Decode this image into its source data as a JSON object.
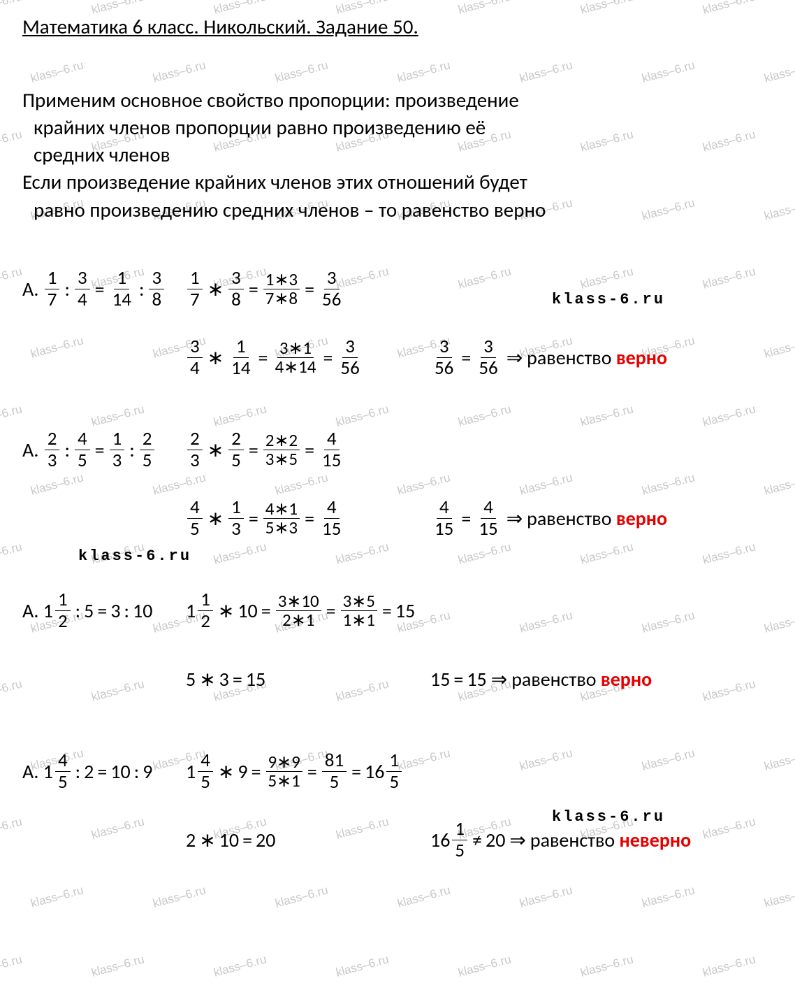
{
  "title": "Математика 6 класс. Никольский. Задание 50.",
  "intro": {
    "l1": "Применим основное свойство пропорции: произведение",
    "l2": "крайних  членов пропорции равно произведению её",
    "l3": "средних членов",
    "l4": "Если произведение крайних членов этих отношений будет",
    "l5": "равно произведению средних членов – то равенство верно"
  },
  "watermark": "klass–6.ru",
  "klass6": "klass-6.ru",
  "labels": {
    "A": "А.",
    "ravenstvo": "равенство",
    "verno": "верно",
    "neverno": "неверно",
    "arrow": "⇒"
  },
  "p1": {
    "lhs_a_n": "1",
    "lhs_a_d": "7",
    "lhs_b_n": "3",
    "lhs_b_d": "4",
    "lhs_c_n": "1",
    "lhs_c_d": "14",
    "lhs_d_n": "3",
    "lhs_d_d": "8",
    "r1_a_n": "1",
    "r1_a_d": "7",
    "r1_b_n": "3",
    "r1_b_d": "8",
    "r1_c_n": "1∗3",
    "r1_c_d": "7∗8",
    "r1_res_n": "3",
    "r1_res_d": "56",
    "r2_a_n": "3",
    "r2_a_d": "4",
    "r2_b_n": "1",
    "r2_b_d": "14",
    "r2_c_n": "3∗1",
    "r2_c_d": "4∗14",
    "r2_res_n": "3",
    "r2_res_d": "56",
    "cmp_l_n": "3",
    "cmp_l_d": "56",
    "cmp_r_n": "3",
    "cmp_r_d": "56"
  },
  "p2": {
    "lhs_a_n": "2",
    "lhs_a_d": "3",
    "lhs_b_n": "4",
    "lhs_b_d": "5",
    "lhs_c_n": "1",
    "lhs_c_d": "3",
    "lhs_d_n": "2",
    "lhs_d_d": "5",
    "r1_a_n": "2",
    "r1_a_d": "3",
    "r1_b_n": "2",
    "r1_b_d": "5",
    "r1_c_n": "2∗2",
    "r1_c_d": "3∗5",
    "r1_res_n": "4",
    "r1_res_d": "15",
    "r2_a_n": "4",
    "r2_a_d": "5",
    "r2_b_n": "1",
    "r2_b_d": "3",
    "r2_c_n": "4∗1",
    "r2_c_d": "5∗3",
    "r2_res_n": "4",
    "r2_res_d": "15",
    "cmp_l_n": "4",
    "cmp_l_d": "15",
    "cmp_r_n": "4",
    "cmp_r_d": "15"
  },
  "p3": {
    "lhs_w": "1",
    "lhs_n": "1",
    "lhs_d": "2",
    "lhs_b": "5",
    "lhs_c": "3",
    "lhs_dd": "10",
    "r1_w": "1",
    "r1_n": "1",
    "r1_d": "2",
    "r1_m": "10",
    "r1_c_n": "3∗10",
    "r1_c_d": "2∗1",
    "r1_e_n": "3∗5",
    "r1_e_d": "1∗1",
    "r1_res": "15",
    "r2_a": "5",
    "r2_b": "3",
    "r2_res": "15",
    "cmp_l": "15",
    "cmp_r": "15"
  },
  "p4": {
    "lhs_w": "1",
    "lhs_n": "4",
    "lhs_d": "5",
    "lhs_b": "2",
    "lhs_c": "10",
    "lhs_dd": "9",
    "r1_w": "1",
    "r1_n": "4",
    "r1_d": "5",
    "r1_m": "9",
    "r1_c_n": "9∗9",
    "r1_c_d": "5∗1",
    "r1_e_n": "81",
    "r1_e_d": "5",
    "r1_res_w": "16",
    "r1_res_n": "1",
    "r1_res_d": "5",
    "r2_a": "2",
    "r2_b": "10",
    "r2_res": "20",
    "cmp_l_w": "16",
    "cmp_l_n": "1",
    "cmp_l_d": "5",
    "cmp_r": "20"
  },
  "colors": {
    "text": "#000000",
    "emphasis": "#e80000",
    "watermark": "#c8c8c8",
    "background": "#ffffff"
  }
}
